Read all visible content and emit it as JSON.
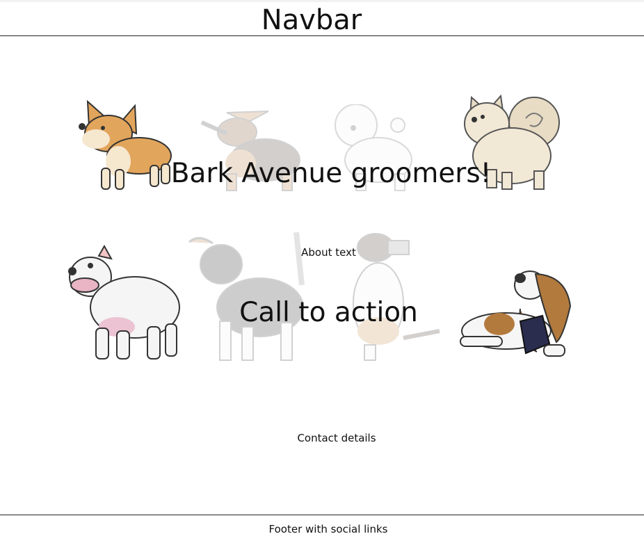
{
  "navbar": {
    "title": "Navbar"
  },
  "hero": {
    "title": "Bark Avenue groomers!"
  },
  "about": {
    "text": "About text"
  },
  "cta": {
    "text": "Call to action"
  },
  "contact": {
    "text": "Contact details"
  },
  "footer": {
    "text": "Footer with social links"
  },
  "gallery": {
    "dogs": [
      {
        "breed": "corgi",
        "icon": "corgi-icon"
      },
      {
        "breed": "dachshund",
        "icon": "dachshund-icon"
      },
      {
        "breed": "bichon",
        "icon": "bichon-icon"
      },
      {
        "breed": "pomeranian",
        "icon": "pomeranian-icon"
      },
      {
        "breed": "bully",
        "icon": "bully-icon"
      },
      {
        "breed": "beagle",
        "icon": "beagle-icon"
      },
      {
        "breed": "jack-russell",
        "icon": "jack-russell-icon"
      },
      {
        "breed": "basset",
        "icon": "basset-icon"
      }
    ]
  },
  "colors": {
    "text": "#111111",
    "border": "#222222",
    "corgi": "#e2a55c",
    "cream": "#e8dcc4",
    "brown": "#b88652",
    "navy": "#2b2d4f"
  }
}
